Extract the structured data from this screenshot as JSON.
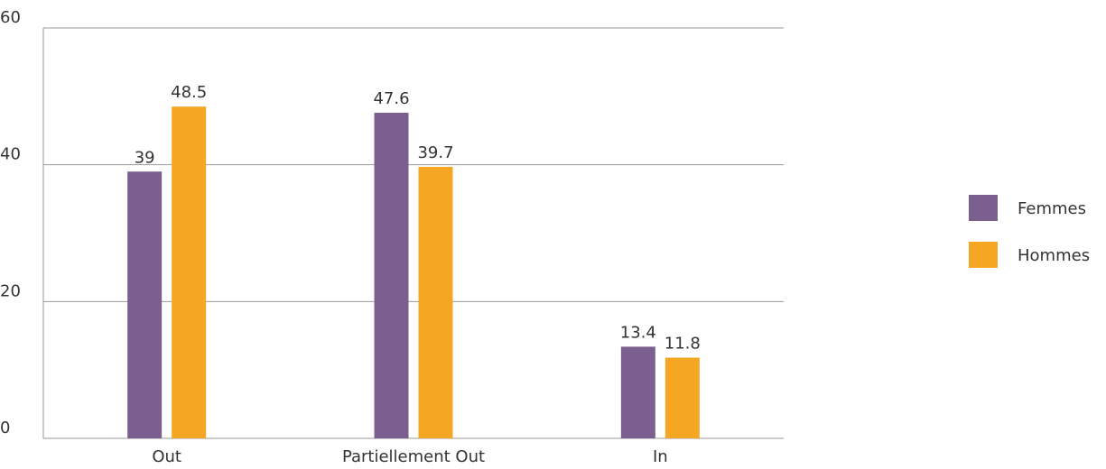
{
  "chart_data": {
    "type": "bar",
    "categories": [
      "Out",
      "Partiellement Out",
      "In"
    ],
    "series": [
      {
        "name": "Femmes",
        "color": "#7b5f8e",
        "values": [
          39,
          47.6,
          13.4
        ]
      },
      {
        "name": "Hommes",
        "color": "#f5a623",
        "values": [
          48.5,
          39.7,
          11.8
        ]
      }
    ],
    "ylim": [
      0,
      60
    ],
    "yticks": [
      0,
      20,
      40,
      60
    ],
    "grid": true,
    "legend": "right"
  }
}
